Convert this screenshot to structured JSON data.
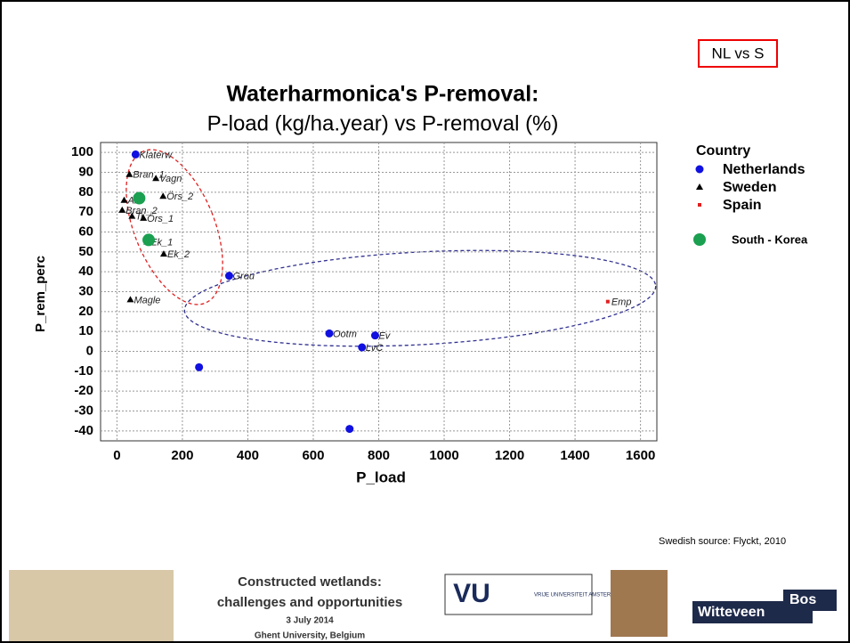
{
  "chart_data": {
    "type": "scatter",
    "title": "Waterharmonica's  P-removal:",
    "subtitle": "P-load (kg/ha.year) vs P-removal (%)",
    "xlabel": "P_load",
    "ylabel": "P_rem_perc",
    "xlim": [
      -50,
      1650
    ],
    "ylim": [
      -45,
      105
    ],
    "xticks": [
      0,
      200,
      400,
      600,
      800,
      1000,
      1200,
      1400,
      1600
    ],
    "yticks": [
      -40,
      -30,
      -20,
      -10,
      0,
      10,
      20,
      30,
      40,
      50,
      60,
      70,
      80,
      90,
      100
    ],
    "grid": true,
    "legend_title": "Country",
    "series": [
      {
        "name": "Netherlands",
        "color": "#1010e0",
        "marker": "circle",
        "x": [
          57,
          343,
          649,
          789,
          749,
          251,
          711
        ],
        "y": [
          99,
          38,
          9,
          8,
          2,
          -8,
          -39
        ],
        "labels": [
          "Klaterw",
          "Grou",
          "Ootm",
          "Ev",
          "LvC",
          null,
          null
        ]
      },
      {
        "name": "Sweden",
        "color": "#000000",
        "marker": "triangle",
        "x": [
          38,
          119,
          141,
          22,
          16,
          46,
          81,
          92,
          143,
          41
        ],
        "y": [
          89,
          87,
          78,
          76,
          71,
          68,
          67,
          55,
          49,
          26
        ],
        "labels": [
          "Bran_1",
          "Vagn",
          "Örs_2",
          "Alv",
          "Bran_2",
          "Tr",
          "Örs_1",
          "Ek_1",
          "Ek_2",
          "Magle"
        ]
      },
      {
        "name": "Spain",
        "color": "#e02020",
        "marker": "square",
        "x": [
          1500
        ],
        "y": [
          25
        ],
        "labels": [
          "Emp"
        ]
      },
      {
        "name": "South - Korea",
        "color": "#1aa050",
        "marker": "big-circle",
        "x": [
          68,
          97
        ],
        "y": [
          77,
          56
        ],
        "labels": [
          null,
          null
        ]
      }
    ]
  },
  "slide": {
    "tag": "NL vs S",
    "source": "Swedish source: Flyckt, 2010",
    "footer": [
      "Constructed wetlands:",
      "challenges and opportunities",
      "3 July 2014",
      "Ghent University, Belgium"
    ],
    "vu": "VU",
    "vu_name": "VRIJE UNIVERSITEIT AMSTERDAM",
    "company": "Witteveen",
    "company2": "Bos"
  }
}
